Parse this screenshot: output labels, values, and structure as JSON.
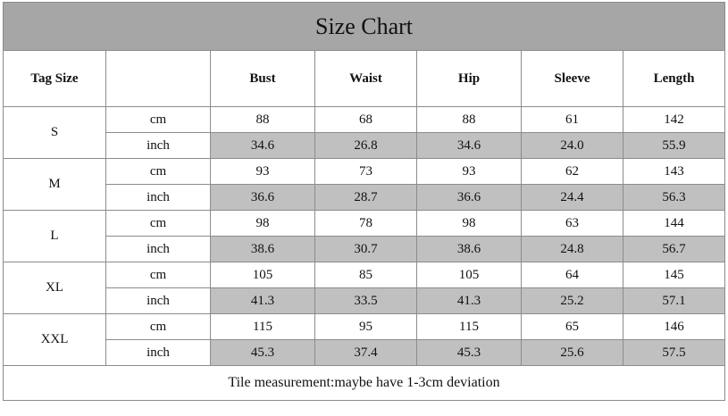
{
  "table": {
    "title": "Size Chart",
    "tag_size_header": "Tag Size",
    "columns": [
      "Bust",
      "Waist",
      "Hip",
      "Sleeve",
      "Length"
    ],
    "rows": [
      {
        "size": "S",
        "cm": {
          "unit": "cm",
          "values": [
            "88",
            "68",
            "88",
            "61",
            "142"
          ]
        },
        "inch": {
          "unit": "inch",
          "values": [
            "34.6",
            "26.8",
            "34.6",
            "24.0",
            "55.9"
          ]
        }
      },
      {
        "size": "M",
        "cm": {
          "unit": "cm",
          "values": [
            "93",
            "73",
            "93",
            "62",
            "143"
          ]
        },
        "inch": {
          "unit": "inch",
          "values": [
            "36.6",
            "28.7",
            "36.6",
            "24.4",
            "56.3"
          ]
        }
      },
      {
        "size": "L",
        "cm": {
          "unit": "cm",
          "values": [
            "98",
            "78",
            "98",
            "63",
            "144"
          ]
        },
        "inch": {
          "unit": "inch",
          "values": [
            "38.6",
            "30.7",
            "38.6",
            "24.8",
            "56.7"
          ]
        }
      },
      {
        "size": "XL",
        "cm": {
          "unit": "cm",
          "values": [
            "105",
            "85",
            "105",
            "64",
            "145"
          ]
        },
        "inch": {
          "unit": "inch",
          "values": [
            "41.3",
            "33.5",
            "41.3",
            "25.2",
            "57.1"
          ]
        }
      },
      {
        "size": "XXL",
        "cm": {
          "unit": "cm",
          "values": [
            "115",
            "95",
            "115",
            "65",
            "146"
          ]
        },
        "inch": {
          "unit": "inch",
          "values": [
            "45.3",
            "37.4",
            "45.3",
            "25.6",
            "57.5"
          ]
        }
      }
    ],
    "footer": "Tile measurement:maybe have 1-3cm deviation"
  }
}
